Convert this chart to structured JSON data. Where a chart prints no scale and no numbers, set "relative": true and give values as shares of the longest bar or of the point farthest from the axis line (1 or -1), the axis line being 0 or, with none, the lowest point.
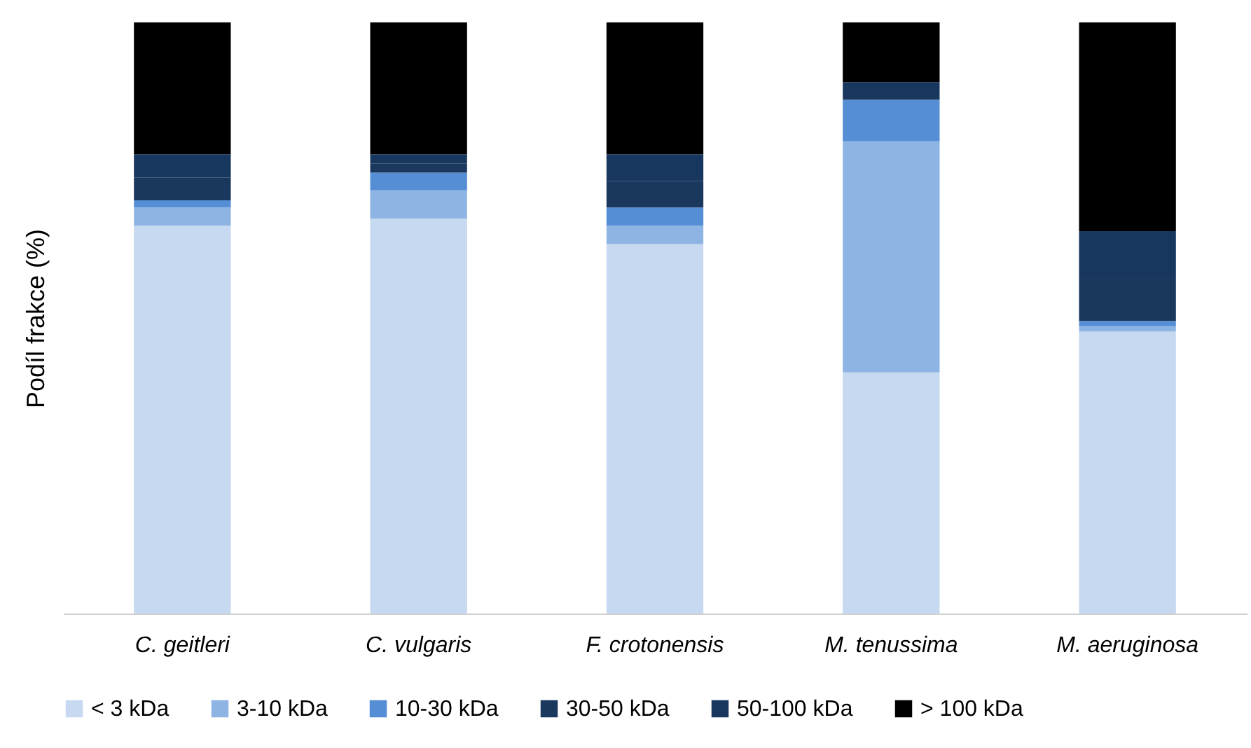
{
  "chart_data": {
    "type": "bar",
    "stacked": true,
    "relative": true,
    "ylabel": "Podíl frakce (%)",
    "legend": "bottom",
    "categories": [
      "C. geitleri",
      "C. vulgaris",
      "F.  crotonensis",
      "M. tenussima",
      "M. aeruginosa"
    ],
    "series": [
      {
        "name": "< 3 kDa",
        "color": "#c6d9f0",
        "values": [
          0.656,
          0.668,
          0.625,
          0.408,
          0.477
        ]
      },
      {
        "name": "3-10 kDa",
        "color": "#8eb4e3",
        "values": [
          0.031,
          0.048,
          0.031,
          0.391,
          0.009
        ]
      },
      {
        "name": "10-30 kDa",
        "color": "#558ed5",
        "values": [
          0.012,
          0.03,
          0.031,
          0.07,
          0.009
        ]
      },
      {
        "name": "30-50 kDa",
        "color": "#1a385e",
        "values": [
          0.039,
          0.015,
          0.045,
          0.015,
          0.076
        ]
      },
      {
        "name": "50-100 kDa",
        "color": "#17375e",
        "values": [
          0.039,
          0.016,
          0.045,
          0.015,
          0.076
        ]
      },
      {
        "name": "> 100 kDa",
        "color": "#000000",
        "values": [
          0.223,
          0.223,
          0.223,
          0.101,
          0.353
        ]
      }
    ]
  }
}
